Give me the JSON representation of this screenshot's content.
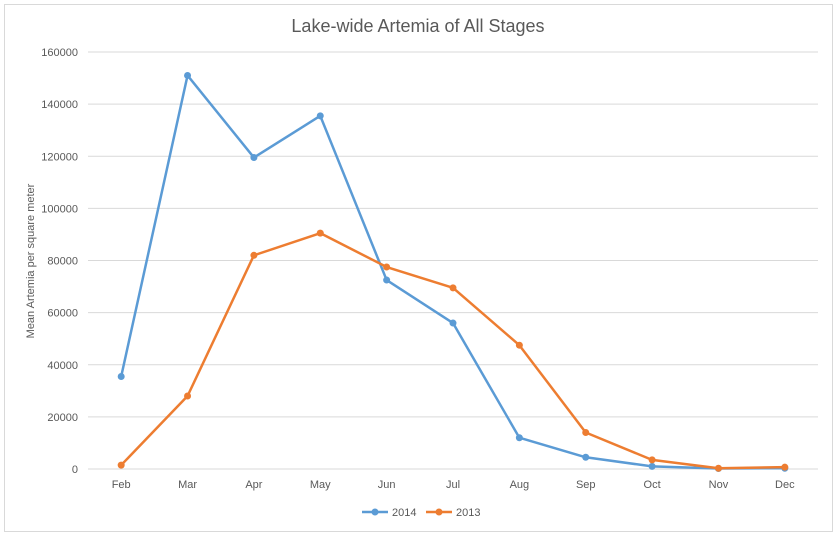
{
  "chart_data": {
    "type": "line",
    "title": "Lake-wide Artemia of All Stages",
    "xlabel": "",
    "ylabel": "Mean Artemia per square meter",
    "categories": [
      "Feb",
      "Mar",
      "Apr",
      "May",
      "Jun",
      "Jul",
      "Aug",
      "Sep",
      "Oct",
      "Nov",
      "Dec"
    ],
    "ylim": [
      0,
      160000
    ],
    "yticks": [
      0,
      20000,
      40000,
      60000,
      80000,
      100000,
      120000,
      140000,
      160000
    ],
    "grid": true,
    "legend": "bottom",
    "series": [
      {
        "name": "2014",
        "color": "#5b9bd5",
        "values": [
          35500,
          151000,
          119500,
          135500,
          72500,
          56000,
          12000,
          4500,
          1000,
          200,
          300
        ]
      },
      {
        "name": "2013",
        "color": "#ed7d31",
        "values": [
          1500,
          28000,
          82000,
          90500,
          77500,
          69500,
          47500,
          14000,
          3500,
          300,
          700
        ]
      }
    ]
  }
}
